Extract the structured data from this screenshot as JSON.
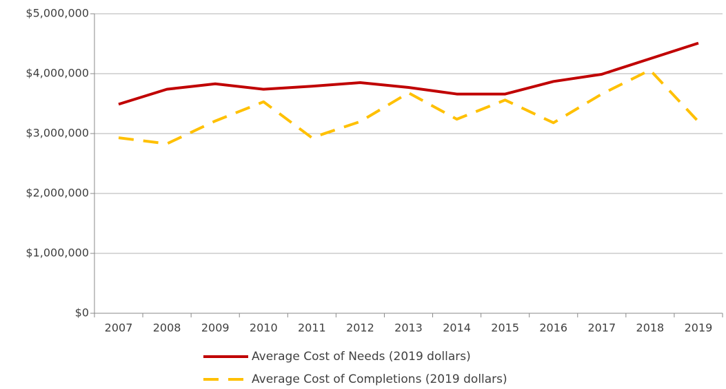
{
  "chart_data": {
    "type": "line",
    "categories": [
      "2007",
      "2008",
      "2009",
      "2010",
      "2011",
      "2012",
      "2013",
      "2014",
      "2015",
      "2016",
      "2017",
      "2018",
      "2019"
    ],
    "series": [
      {
        "name": "Average Cost of Needs (2019 dollars)",
        "color": "#c00000",
        "dashed": false,
        "values": [
          3490000,
          3740000,
          3830000,
          3740000,
          3790000,
          3850000,
          3770000,
          3660000,
          3660000,
          3870000,
          3990000,
          4250000,
          4510000
        ]
      },
      {
        "name": "Average Cost of Completions (2019 dollars)",
        "color": "#ffc000",
        "dashed": true,
        "values": [
          2930000,
          2830000,
          3210000,
          3530000,
          2930000,
          3200000,
          3680000,
          3240000,
          3560000,
          3180000,
          3660000,
          4060000,
          3200000
        ]
      }
    ],
    "ylim": [
      0,
      5000000
    ],
    "yticks": [
      {
        "value": 0,
        "label": "$0"
      },
      {
        "value": 1000000,
        "label": "$1,000,000"
      },
      {
        "value": 2000000,
        "label": "$2,000,000"
      },
      {
        "value": 3000000,
        "label": "$3,000,000"
      },
      {
        "value": 4000000,
        "label": "$4,000,000"
      },
      {
        "value": 5000000,
        "label": "$5,000,000"
      }
    ],
    "grid": true,
    "legend": "bottom"
  }
}
